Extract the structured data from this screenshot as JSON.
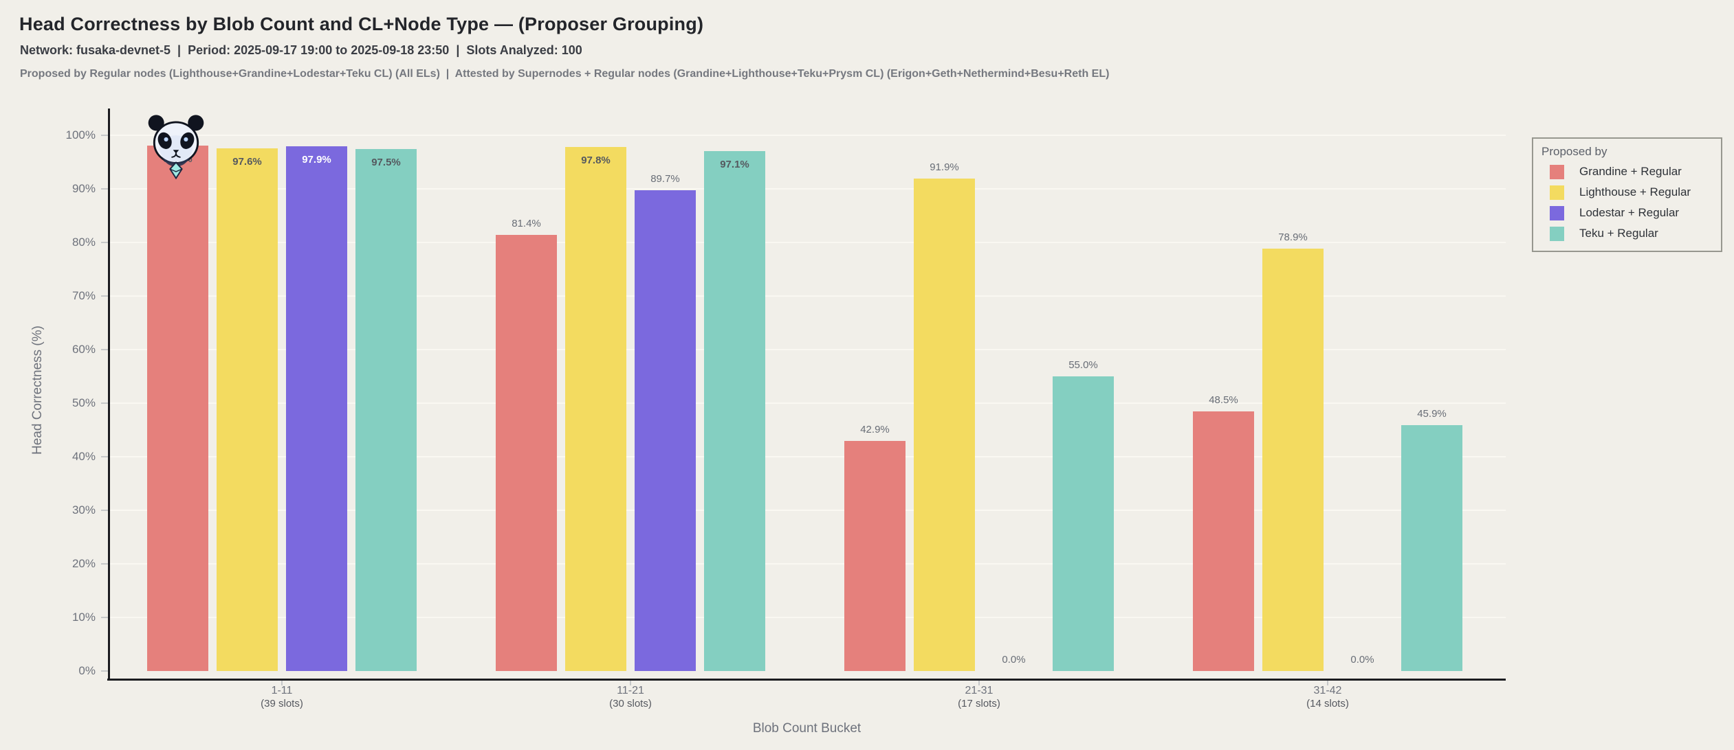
{
  "header": {
    "title": "Head Correctness by Blob Count and CL+Node Type — (Proposer Grouping)",
    "subtitle": "Network: fusaka-devnet-5  |  Period: 2025-09-17 19:00 to 2025-09-18 23:50  |  Slots Analyzed: 100",
    "description": "Proposed by Regular nodes (Lighthouse+Grandine+Lodestar+Teku CL) (All ELs)  |  Attested by Supernodes + Regular nodes (Grandine+Lighthouse+Teku+Prysm CL) (Erigon+Geth+Nethermind+Besu+Reth EL)"
  },
  "watermark_icon": "panda-logo",
  "chart_data": {
    "type": "bar",
    "title": "Head Correctness by Blob Count and CL+Node Type — (Proposer Grouping)",
    "xlabel": "Blob Count Bucket",
    "ylabel": "Head Correctness (%)",
    "ylim": [
      0,
      100
    ],
    "ytick_labels": [
      "0%",
      "10%",
      "20%",
      "30%",
      "40%",
      "50%",
      "60%",
      "70%",
      "80%",
      "90%",
      "100%"
    ],
    "grid": true,
    "legend": {
      "title": "Proposed by",
      "position": "right-outside-top"
    },
    "categories": [
      {
        "bucket": "1-11",
        "slots": "(39 slots)"
      },
      {
        "bucket": "11-21",
        "slots": "(30 slots)"
      },
      {
        "bucket": "21-31",
        "slots": "(17 slots)"
      },
      {
        "bucket": "31-42",
        "slots": "(14 slots)"
      }
    ],
    "series": [
      {
        "name": "Grandine + Regular",
        "color": "#E5807C",
        "label_color_inside": "#55595F",
        "values": [
          98.1,
          81.4,
          42.9,
          48.5
        ]
      },
      {
        "name": "Lighthouse + Regular",
        "color": "#F3DB60",
        "label_color_inside": "#55595F",
        "values": [
          97.6,
          97.8,
          91.9,
          78.9
        ]
      },
      {
        "name": "Lodestar + Regular",
        "color": "#7B69DE",
        "label_color_inside": "#FFFFFF",
        "values": [
          97.9,
          89.7,
          0.0,
          0.0
        ]
      },
      {
        "name": "Teku + Regular",
        "color": "#84CFC1",
        "label_color_inside": "#55595F",
        "values": [
          97.5,
          97.1,
          55.0,
          45.9
        ]
      }
    ],
    "bar_label_format": "{value}%",
    "style": {
      "background": "#F1EFE9",
      "gridline": "#FAF8F2",
      "spine": "#1B1C20",
      "tick_text": "#6E727C",
      "bar_label_text_outside": "#686D76",
      "legend_border": "#97978F"
    }
  }
}
